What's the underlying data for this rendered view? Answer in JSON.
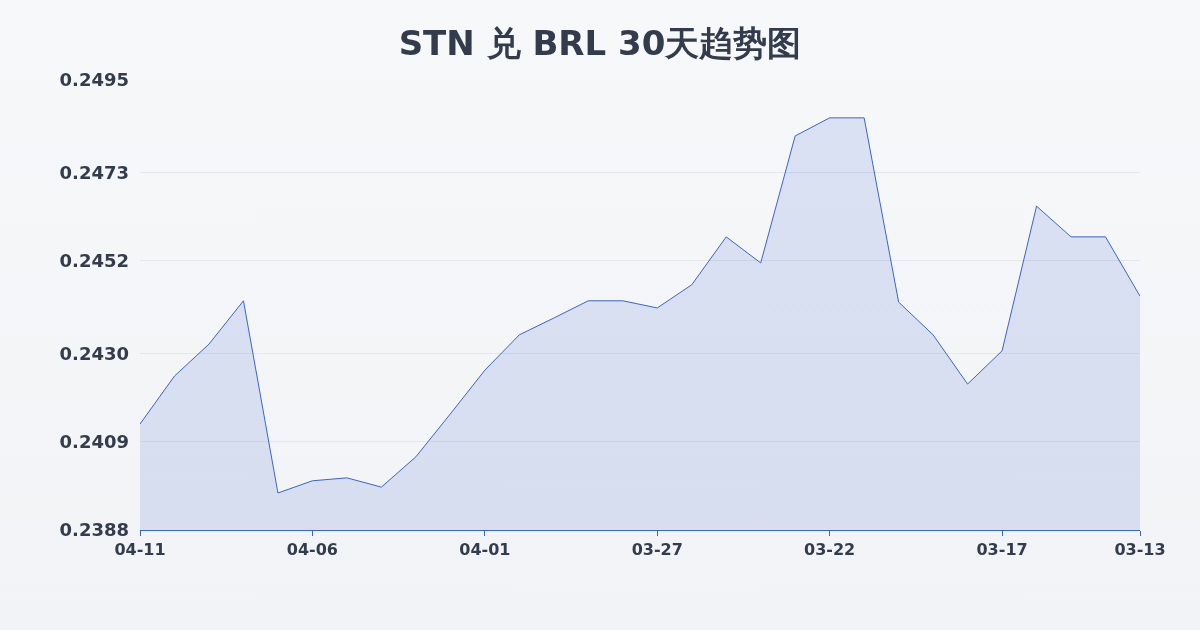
{
  "chart_data": {
    "type": "area",
    "title": "STN 兑 BRL 30天趋势图",
    "categories": [
      "04-11",
      null,
      null,
      null,
      null,
      "04-06",
      null,
      null,
      null,
      null,
      "04-01",
      null,
      null,
      null,
      null,
      "03-27",
      null,
      null,
      null,
      null,
      "03-22",
      null,
      null,
      null,
      null,
      "03-17",
      null,
      null,
      null,
      "03-13"
    ],
    "series": [
      {
        "color": "#3a66c8",
        "values": [
          0.24132,
          0.24246,
          0.24322,
          0.24425,
          0.23968,
          0.23997,
          0.24004,
          0.23982,
          0.24054,
          0.24156,
          0.2426,
          0.24344,
          0.24384,
          0.24425,
          0.24425,
          0.24408,
          0.24463,
          0.24577,
          0.24515,
          0.24817,
          0.2486,
          0.2486,
          0.24422,
          0.24344,
          0.24227,
          0.24306,
          0.2465,
          0.24577,
          0.24577,
          0.24436
        ]
      }
    ],
    "ylim": [
      0.2388,
      0.2495
    ],
    "yticks": [
      {
        "value": 0.2388,
        "label": "0.2388"
      },
      {
        "value": 0.2409,
        "label": "0.2409"
      },
      {
        "value": 0.243,
        "label": "0.2430"
      },
      {
        "value": 0.2452,
        "label": "0.2452"
      },
      {
        "value": 0.2473,
        "label": "0.2473"
      },
      {
        "value": 0.2495,
        "label": "0.2495"
      }
    ],
    "grid": "y",
    "legend": false,
    "marker": "none",
    "line_style": "solid"
  }
}
